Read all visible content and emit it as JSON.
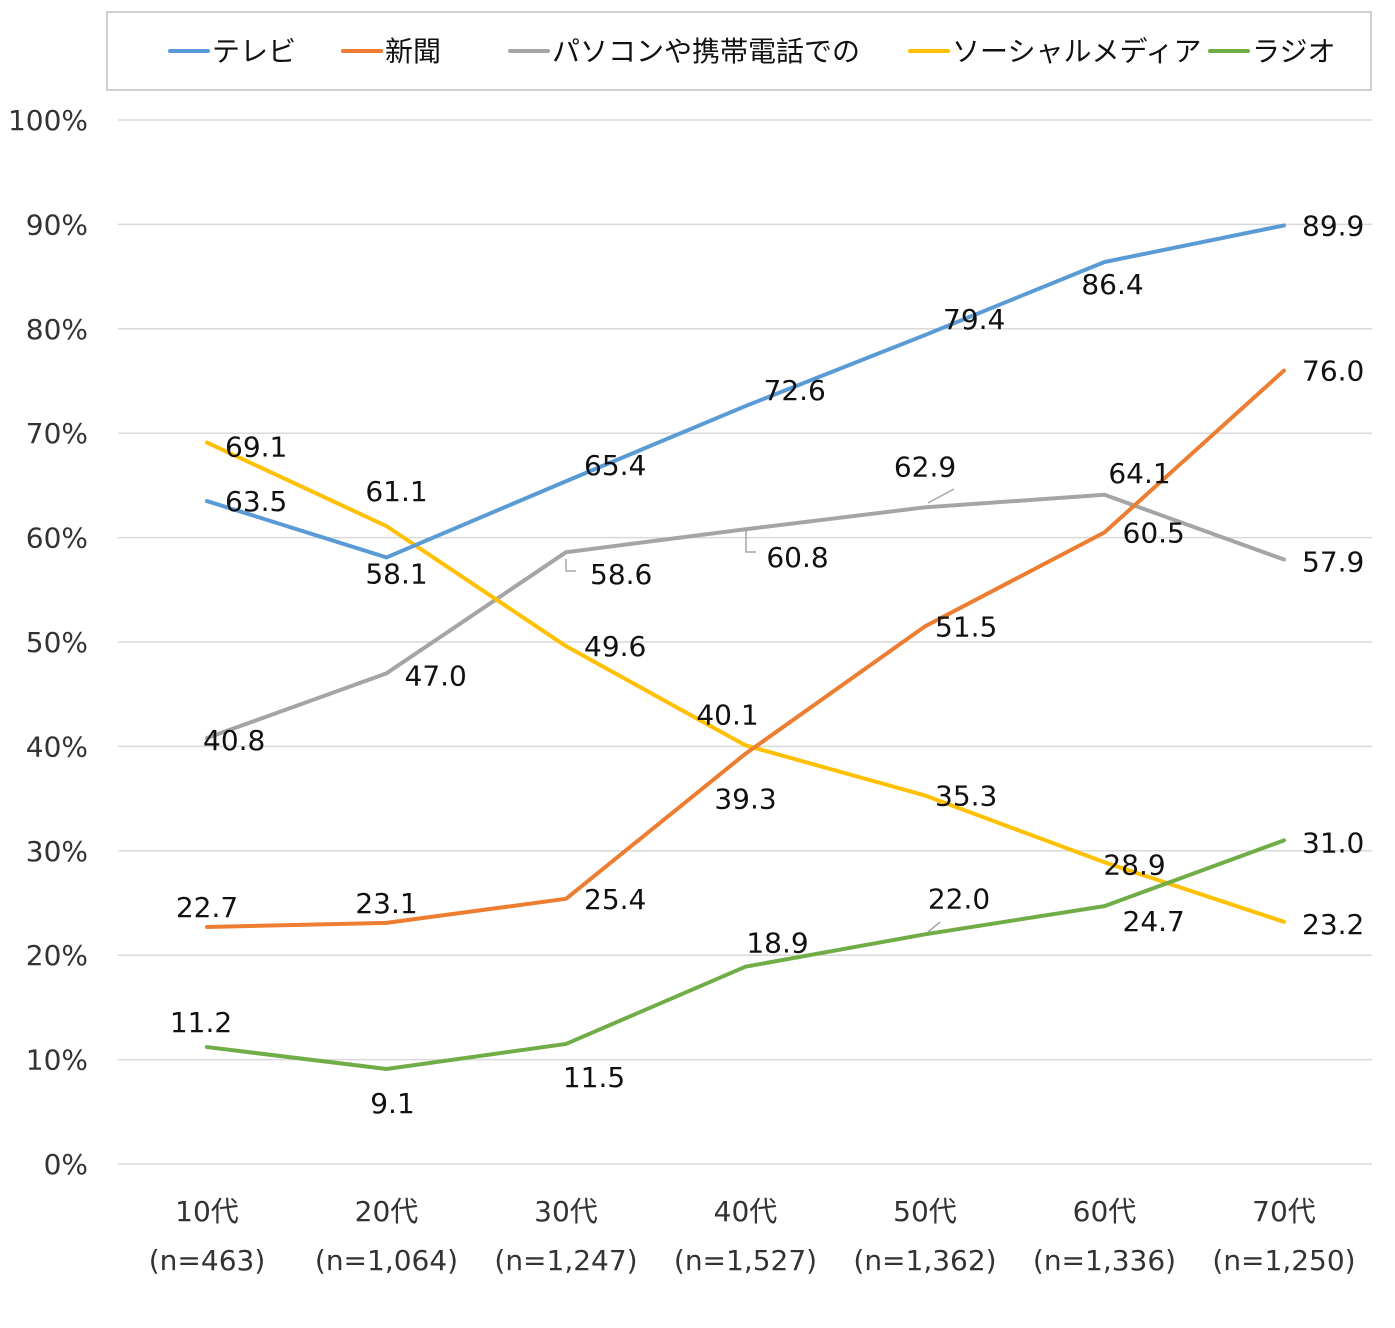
{
  "chart_data": {
    "type": "line",
    "title": "",
    "xlabel": "",
    "ylabel": "",
    "ylim": [
      0,
      100
    ],
    "yticks": [
      "0%",
      "10%",
      "20%",
      "30%",
      "40%",
      "50%",
      "60%",
      "70%",
      "80%",
      "90%",
      "100%"
    ],
    "grid": true,
    "legend_position": "top",
    "categories": [
      {
        "age": "10代",
        "n": "(n=463)"
      },
      {
        "age": "20代",
        "n": "(n=1,064)"
      },
      {
        "age": "30代",
        "n": "(n=1,247)"
      },
      {
        "age": "40代",
        "n": "(n=1,527)"
      },
      {
        "age": "50代",
        "n": "(n=1,362)"
      },
      {
        "age": "60代",
        "n": "(n=1,336)"
      },
      {
        "age": "70代",
        "n": "(n=1,250)"
      }
    ],
    "series": [
      {
        "name": "テレビ",
        "color": "#5b9bd5",
        "values": [
          63.5,
          58.1,
          65.4,
          72.6,
          79.4,
          86.4,
          89.9
        ]
      },
      {
        "name": "新聞",
        "color": "#ed7d31",
        "values": [
          22.7,
          23.1,
          25.4,
          39.3,
          51.5,
          60.5,
          76.0
        ]
      },
      {
        "name": "パソコンや携帯電話での",
        "color": "#a5a5a5",
        "values": [
          40.8,
          47.0,
          58.6,
          60.8,
          62.9,
          64.1,
          57.9
        ]
      },
      {
        "name": "ソーシャルメディア",
        "color": "#ffc000",
        "values": [
          69.1,
          61.1,
          49.6,
          40.1,
          35.3,
          28.9,
          23.2
        ]
      },
      {
        "name": "ラジオ",
        "color": "#70ad47",
        "values": [
          11.2,
          9.1,
          11.5,
          18.9,
          22.0,
          24.7,
          31.0
        ]
      }
    ]
  }
}
